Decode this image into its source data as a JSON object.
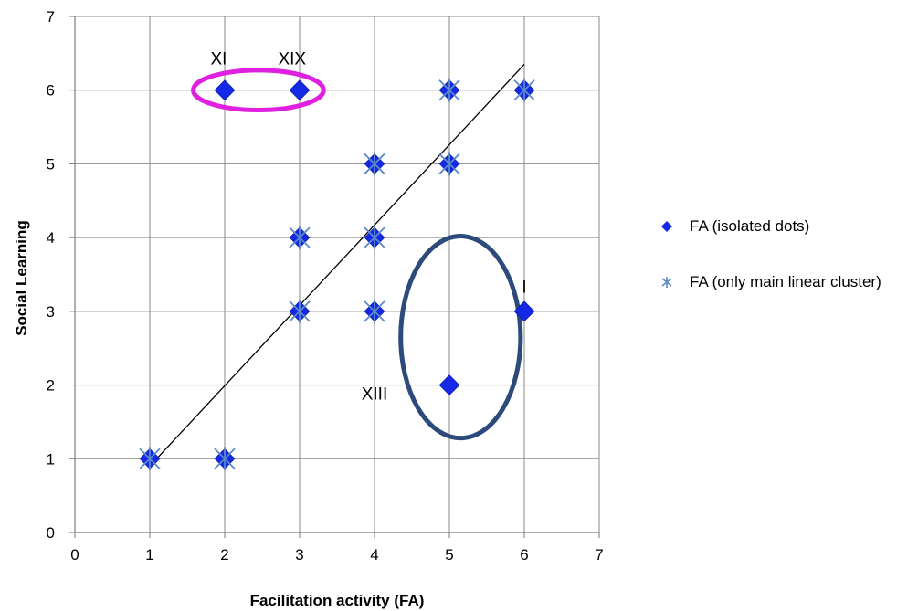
{
  "chart_data": {
    "type": "scatter",
    "title": "",
    "xlabel": "Facilitation activity (FA)",
    "ylabel": "Social Learning",
    "xlim": [
      0,
      7
    ],
    "ylim": [
      0,
      7
    ],
    "xticks": [
      "0",
      "1",
      "2",
      "3",
      "4",
      "5",
      "6",
      "7"
    ],
    "yticks": [
      "0",
      "1",
      "2",
      "3",
      "4",
      "5",
      "6",
      "7"
    ],
    "grid": true,
    "legend_position": "right",
    "series": [
      {
        "name": "FA (isolated dots)",
        "marker": "diamond",
        "color": "#1428e6",
        "points": [
          [
            1,
            1
          ],
          [
            2,
            1
          ],
          [
            2,
            6
          ],
          [
            3,
            6
          ],
          [
            3,
            4
          ],
          [
            3,
            3
          ],
          [
            4,
            5
          ],
          [
            4,
            4
          ],
          [
            4,
            3
          ],
          [
            5,
            6
          ],
          [
            5,
            5
          ],
          [
            5,
            2
          ],
          [
            6,
            6
          ],
          [
            6,
            3
          ]
        ]
      },
      {
        "name": "FA (only main linear cluster)",
        "marker": "asterisk",
        "color": "#5b8ac7",
        "points": [
          [
            1,
            1
          ],
          [
            2,
            1
          ],
          [
            3,
            4
          ],
          [
            3,
            3
          ],
          [
            4,
            5
          ],
          [
            4,
            4
          ],
          [
            4,
            3
          ],
          [
            5,
            6
          ],
          [
            5,
            5
          ],
          [
            6,
            6
          ]
        ]
      }
    ],
    "trendline": {
      "from": [
        1,
        0.9
      ],
      "to": [
        6,
        6.35
      ],
      "color": "#000000"
    },
    "annotations": [
      {
        "text": "XI",
        "x": 1.92,
        "y": 6.35
      },
      {
        "text": "XIX",
        "x": 2.9,
        "y": 6.35
      },
      {
        "text": "I",
        "x": 6.0,
        "y": 3.25
      },
      {
        "text": "XIII",
        "x": 4.0,
        "y": 1.8
      }
    ],
    "highlights": [
      {
        "shape": "ellipse",
        "color": "#e020e0",
        "cx": 2.45,
        "cy": 6.0,
        "rx": 0.87,
        "ry": 0.27
      },
      {
        "shape": "ellipse",
        "color": "#2c4a7a",
        "cx": 5.15,
        "cy": 2.65,
        "rx": 0.8,
        "ry": 1.37
      }
    ]
  }
}
